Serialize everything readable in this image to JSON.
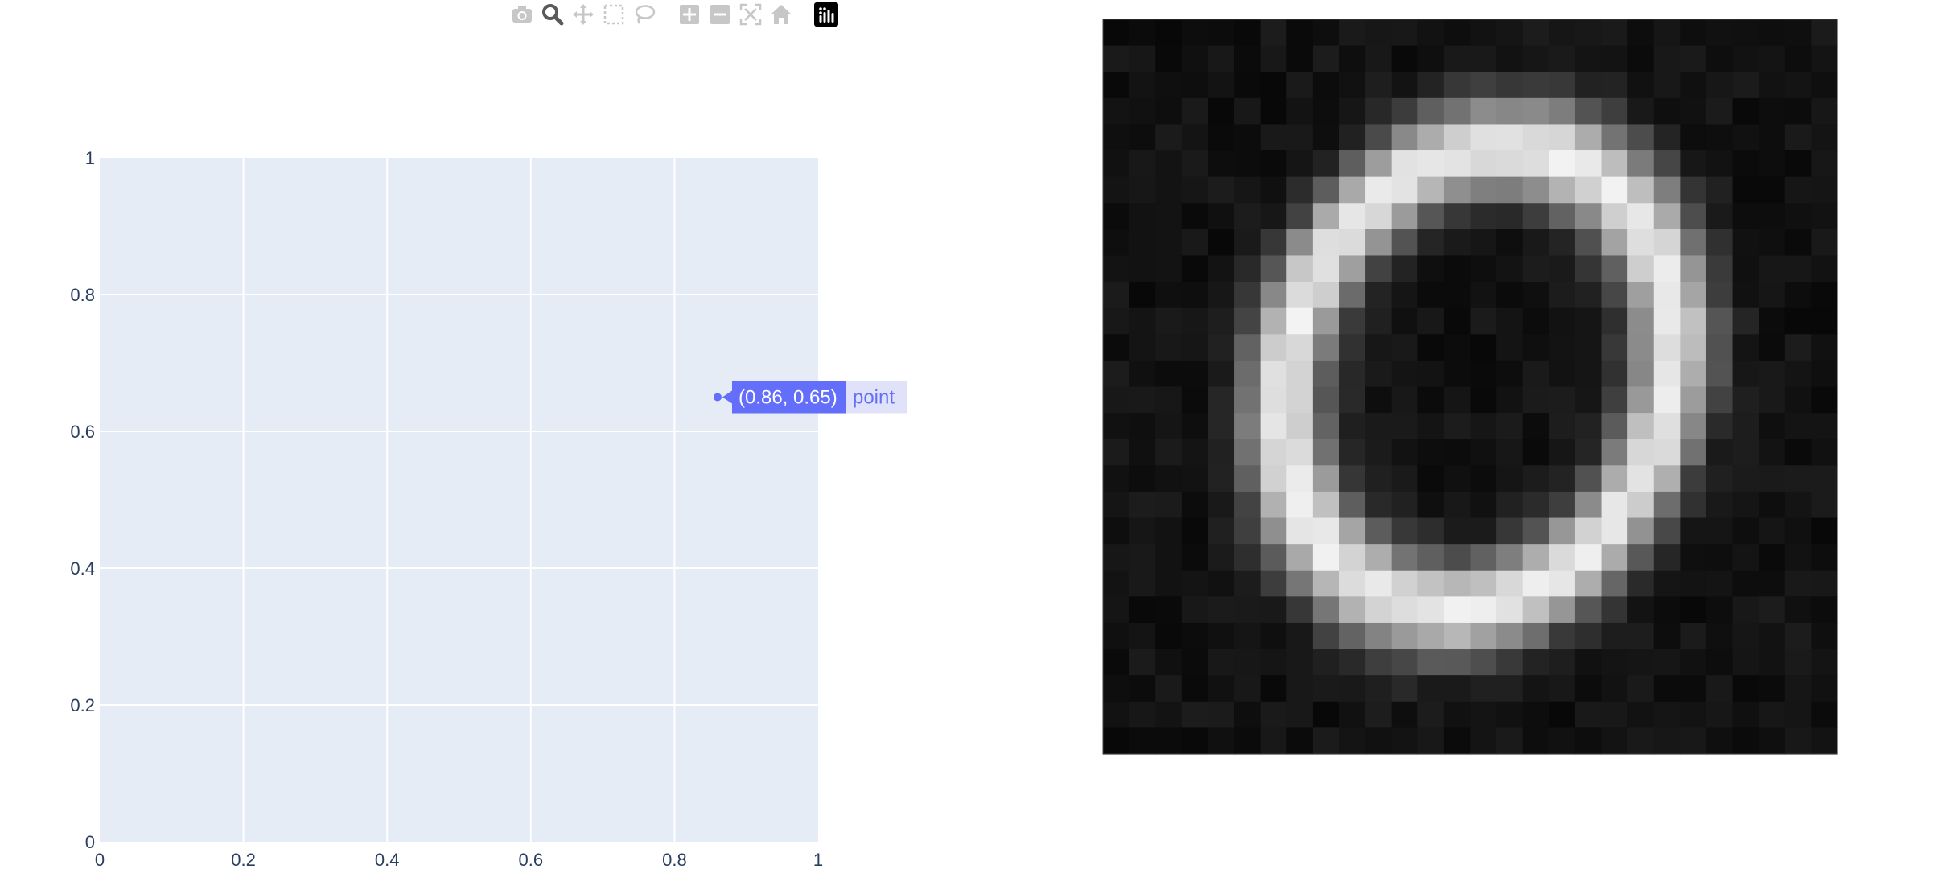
{
  "modebar": {
    "buttons": [
      {
        "name": "camera-icon",
        "title": "Download plot as a png",
        "group": 0
      },
      {
        "name": "zoom-icon",
        "title": "Zoom",
        "group": 0,
        "active": true
      },
      {
        "name": "pan-icon",
        "title": "Pan",
        "group": 0
      },
      {
        "name": "box-select-icon",
        "title": "Box Select",
        "group": 0
      },
      {
        "name": "lasso-select-icon",
        "title": "Lasso Select",
        "group": 0
      },
      {
        "name": "zoom-in-icon",
        "title": "Zoom in",
        "group": 1
      },
      {
        "name": "zoom-out-icon",
        "title": "Zoom out",
        "group": 1
      },
      {
        "name": "autoscale-icon",
        "title": "Autoscale",
        "group": 1
      },
      {
        "name": "reset-axes-icon",
        "title": "Reset axes",
        "group": 1
      },
      {
        "name": "plotly-logo-icon",
        "title": "Produced with Plotly",
        "group": 2
      }
    ],
    "colors": {
      "icon": "#c7c7c7",
      "active": "#5a5a5a",
      "logo_bg": "#000000"
    }
  },
  "chart_data": [
    {
      "type": "scatter",
      "x": [
        0.86
      ],
      "y": [
        0.65
      ],
      "series": [
        {
          "name": "point",
          "x": [
            0.86
          ],
          "y": [
            0.65
          ],
          "color": "#636efa"
        }
      ],
      "xlim": [
        0,
        1
      ],
      "ylim": [
        0,
        1
      ],
      "xticks": [
        "0",
        "0.2",
        "0.4",
        "0.6",
        "0.8",
        "1"
      ],
      "yticks": [
        "0",
        "0.2",
        "0.4",
        "0.6",
        "0.8",
        "1"
      ],
      "grid": true,
      "plot_bgcolor": "#e5ecf6",
      "hover": {
        "text": "(0.86, 0.65)",
        "series": "point"
      }
    },
    {
      "type": "heatmap",
      "colorscale": "gray",
      "rows": 28,
      "cols": 28,
      "description_value": "handwritten digit 0 (MNIST-style)"
    }
  ]
}
